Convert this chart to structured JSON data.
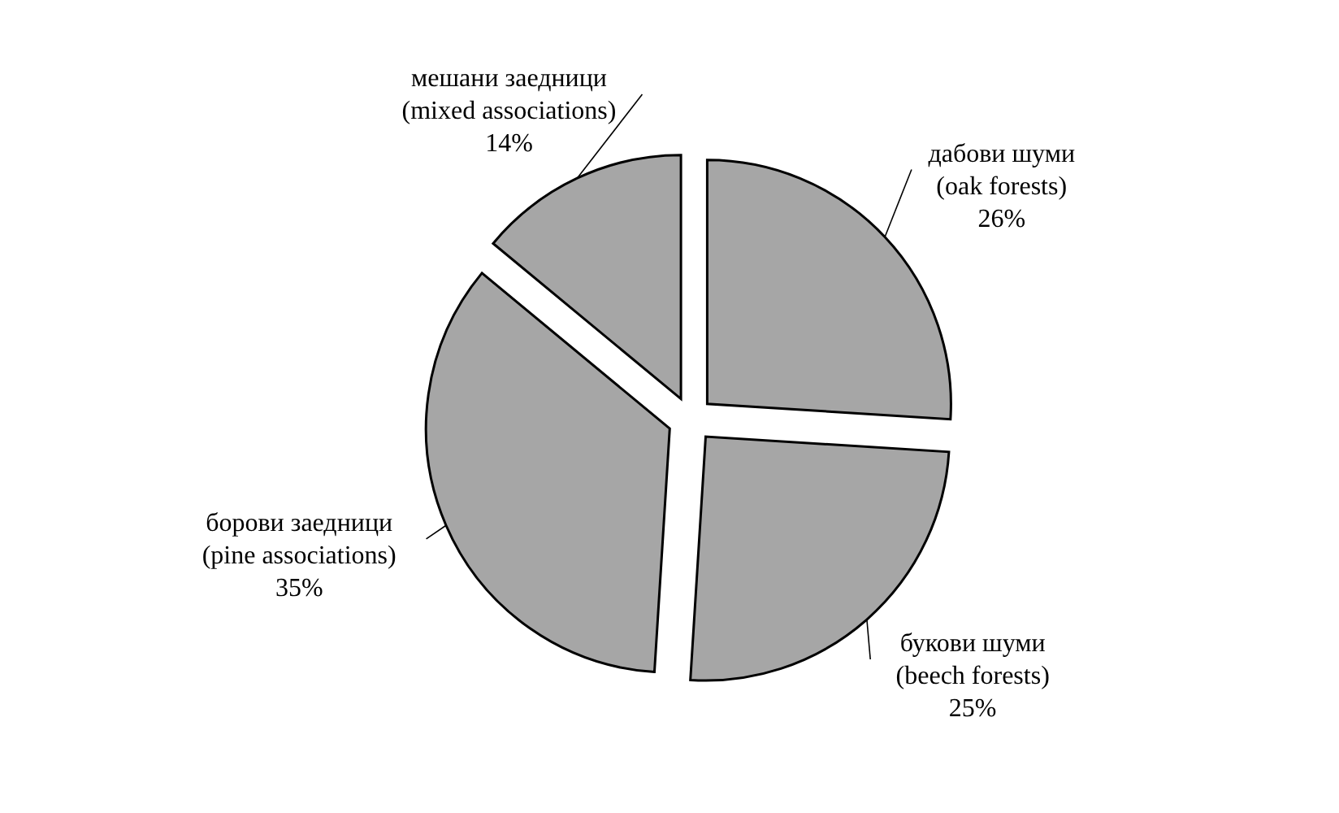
{
  "chart_data": {
    "type": "pie",
    "categories": [
      "дабови шуми (oak forests)",
      "букови шуми (beech forests)",
      "борови заедници (pine associations)",
      "мешани заедници (mixed associations)"
    ],
    "values": [
      26,
      25,
      35,
      14
    ],
    "colors": [
      "#a6a6a6",
      "#a6a6a6",
      "#a6a6a6",
      "#a6a6a6"
    ],
    "value_labels": [
      "26%",
      "25%",
      "35%",
      "14%"
    ],
    "legend": false
  }
}
